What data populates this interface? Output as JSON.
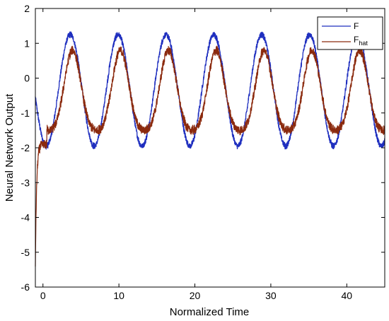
{
  "chart_data": {
    "type": "line",
    "xlabel": "Normalized Time",
    "ylabel": "Neural Network Output",
    "xlim": [
      -1,
      45
    ],
    "ylim": [
      -6,
      2
    ],
    "xticks": [
      "0",
      "10",
      "20",
      "30",
      "40"
    ],
    "yticks": [
      "2",
      "1",
      "0",
      "-1",
      "-2",
      "-3",
      "-4",
      "-5",
      "-6"
    ],
    "grid": false,
    "legend_position": "top-right",
    "series": [
      {
        "name": "F",
        "color": "#1f2fbf",
        "model": "sinusoid",
        "amplitude": 1.6,
        "offset": -0.35,
        "period": 6.3,
        "peak_x": 3.6,
        "noise": 0.12,
        "x_start": -1,
        "x_end": 45
      },
      {
        "name": "F",
        "subscript": "hat",
        "color": "#8b2a0e",
        "model": "sinusoid-lagged",
        "amplitude": 1.35,
        "offset": -0.55,
        "period": 6.3,
        "peak_x": 3.9,
        "noise": 0.18,
        "initial_value": -5.4,
        "initial_rise_to": -1.9,
        "x_start": -1,
        "x_end": 45
      }
    ]
  }
}
